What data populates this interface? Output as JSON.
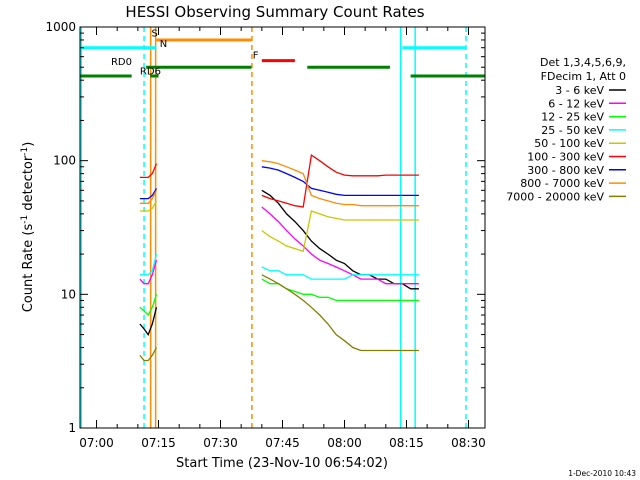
{
  "chart_data": {
    "type": "line",
    "title": "HESSI Observing Summary Count Rates",
    "xlabel": "Start Time (23-Nov-10 06:54:02)",
    "ylabel_base": "Count Rate (s",
    "ylabel_sup1": "-1",
    "ylabel_mid": " detector",
    "ylabel_sup2": "-1",
    "ylabel_end": ")",
    "xlim_min": [
      -4,
      94
    ],
    "ylog": true,
    "ylim": [
      1,
      1000
    ],
    "x_ticks": [
      {
        "m": 0,
        "label": "07:00"
      },
      {
        "m": 15,
        "label": "07:15"
      },
      {
        "m": 30,
        "label": "07:30"
      },
      {
        "m": 45,
        "label": "07:45"
      },
      {
        "m": 60,
        "label": "08:00"
      },
      {
        "m": 75,
        "label": "08:15"
      },
      {
        "m": 90,
        "label": "08:30"
      }
    ],
    "y_ticks": [
      {
        "v": 1,
        "label": "1"
      },
      {
        "v": 10,
        "label": "10"
      },
      {
        "v": 100,
        "label": "100"
      },
      {
        "v": 1000,
        "label": "1000"
      }
    ],
    "legend_header": [
      "Det 1,3,4,5,6,9,",
      "FDecim 1, Att 0"
    ],
    "series": [
      {
        "name": "3 - 6 keV",
        "color": "#000000",
        "segments": [
          [
            [
              10.5,
              6
            ],
            [
              11.5,
              5.5
            ],
            [
              12.5,
              5
            ],
            [
              13.5,
              6
            ],
            [
              14.5,
              8
            ]
          ],
          [
            [
              40,
              60
            ],
            [
              42,
              55
            ],
            [
              44,
              48
            ],
            [
              46,
              40
            ],
            [
              48,
              35
            ],
            [
              50,
              30
            ],
            [
              52,
              25
            ],
            [
              54,
              22
            ],
            [
              56,
              20
            ],
            [
              58,
              18
            ],
            [
              60,
              17
            ],
            [
              62,
              15
            ],
            [
              64,
              14
            ],
            [
              66,
              14
            ],
            [
              68,
              13
            ],
            [
              70,
              13
            ],
            [
              72,
              12
            ],
            [
              74,
              12
            ],
            [
              76,
              11
            ],
            [
              78,
              11
            ]
          ]
        ]
      },
      {
        "name": "6 - 12 keV",
        "color": "#ff00ff",
        "segments": [
          [
            [
              10.5,
              13
            ],
            [
              11.5,
              12
            ],
            [
              12.5,
              12
            ],
            [
              13.5,
              14
            ],
            [
              14.5,
              18
            ]
          ],
          [
            [
              40,
              45
            ],
            [
              42,
              40
            ],
            [
              44,
              35
            ],
            [
              46,
              30
            ],
            [
              48,
              26
            ],
            [
              50,
              23
            ],
            [
              52,
              20
            ],
            [
              54,
              18
            ],
            [
              56,
              17
            ],
            [
              58,
              16
            ],
            [
              60,
              15
            ],
            [
              62,
              14
            ],
            [
              64,
              13
            ],
            [
              66,
              13
            ],
            [
              68,
              13
            ],
            [
              70,
              12
            ],
            [
              72,
              12
            ],
            [
              74,
              12
            ],
            [
              76,
              12
            ],
            [
              78,
              12
            ]
          ]
        ]
      },
      {
        "name": "12 - 25 keV",
        "color": "#00ff00",
        "segments": [
          [
            [
              10.5,
              8
            ],
            [
              11.5,
              7.5
            ],
            [
              12.5,
              7
            ],
            [
              13.5,
              8
            ],
            [
              14.5,
              10
            ]
          ],
          [
            [
              40,
              13
            ],
            [
              42,
              12
            ],
            [
              44,
              12
            ],
            [
              46,
              11
            ],
            [
              48,
              10.5
            ],
            [
              50,
              10
            ],
            [
              52,
              10
            ],
            [
              54,
              9.5
            ],
            [
              56,
              9.5
            ],
            [
              58,
              9
            ],
            [
              60,
              9
            ],
            [
              62,
              9
            ],
            [
              64,
              9
            ],
            [
              66,
              9
            ],
            [
              68,
              9
            ],
            [
              70,
              9
            ],
            [
              72,
              9
            ],
            [
              74,
              9
            ],
            [
              76,
              9
            ],
            [
              78,
              9
            ]
          ]
        ]
      },
      {
        "name": "25 - 50 keV",
        "color": "#00ffff",
        "segments": [
          [
            [
              10.5,
              14
            ],
            [
              11.5,
              14
            ],
            [
              12.5,
              14
            ],
            [
              13.5,
              15
            ],
            [
              14.5,
              20
            ]
          ],
          [
            [
              40,
              16
            ],
            [
              42,
              15
            ],
            [
              44,
              15
            ],
            [
              46,
              14
            ],
            [
              48,
              14
            ],
            [
              50,
              14
            ],
            [
              52,
              13
            ],
            [
              54,
              13
            ],
            [
              56,
              13
            ],
            [
              58,
              13
            ],
            [
              60,
              13
            ],
            [
              62,
              14
            ],
            [
              64,
              14
            ],
            [
              66,
              14
            ],
            [
              68,
              14
            ],
            [
              70,
              14
            ],
            [
              72,
              14
            ],
            [
              74,
              14
            ],
            [
              76,
              14
            ],
            [
              78,
              14
            ]
          ]
        ]
      },
      {
        "name": "50 - 100 keV",
        "color": "#c8c800",
        "segments": [
          [
            [
              10.5,
              42
            ],
            [
              11.5,
              42
            ],
            [
              12.5,
              42
            ],
            [
              13.5,
              44
            ],
            [
              14.5,
              50
            ]
          ],
          [
            [
              40,
              30
            ],
            [
              42,
              27
            ],
            [
              44,
              25
            ],
            [
              46,
              23
            ],
            [
              48,
              22
            ],
            [
              50,
              21
            ],
            [
              52,
              42
            ],
            [
              54,
              40
            ],
            [
              56,
              38
            ],
            [
              58,
              37
            ],
            [
              60,
              36
            ],
            [
              62,
              36
            ],
            [
              64,
              36
            ],
            [
              66,
              36
            ],
            [
              68,
              36
            ],
            [
              70,
              36
            ],
            [
              72,
              36
            ],
            [
              74,
              36
            ],
            [
              76,
              36
            ],
            [
              78,
              36
            ]
          ]
        ]
      },
      {
        "name": "100 - 300 keV",
        "color": "#ff0000",
        "segments": [
          [
            [
              10.5,
              75
            ],
            [
              11.5,
              75
            ],
            [
              12.5,
              75
            ],
            [
              13.5,
              80
            ],
            [
              14.5,
              95
            ]
          ],
          [
            [
              40,
              55
            ],
            [
              42,
              52
            ],
            [
              44,
              50
            ],
            [
              46,
              48
            ],
            [
              48,
              46
            ],
            [
              50,
              45
            ],
            [
              52,
              110
            ],
            [
              54,
              100
            ],
            [
              56,
              90
            ],
            [
              58,
              82
            ],
            [
              60,
              78
            ],
            [
              62,
              77
            ],
            [
              64,
              77
            ],
            [
              66,
              77
            ],
            [
              68,
              77
            ],
            [
              70,
              78
            ],
            [
              72,
              78
            ],
            [
              74,
              78
            ],
            [
              76,
              78
            ],
            [
              78,
              78
            ]
          ]
        ]
      },
      {
        "name": "300 - 800 keV",
        "color": "#0000ff",
        "segments": [
          [
            [
              10.5,
              52
            ],
            [
              11.5,
              52
            ],
            [
              12.5,
              52
            ],
            [
              13.5,
              55
            ],
            [
              14.5,
              62
            ]
          ],
          [
            [
              40,
              90
            ],
            [
              42,
              88
            ],
            [
              44,
              85
            ],
            [
              46,
              80
            ],
            [
              48,
              75
            ],
            [
              50,
              70
            ],
            [
              52,
              62
            ],
            [
              54,
              60
            ],
            [
              56,
              58
            ],
            [
              58,
              56
            ],
            [
              60,
              55
            ],
            [
              62,
              55
            ],
            [
              64,
              55
            ],
            [
              66,
              55
            ],
            [
              68,
              55
            ],
            [
              70,
              55
            ],
            [
              72,
              55
            ],
            [
              74,
              55
            ],
            [
              76,
              55
            ],
            [
              78,
              55
            ]
          ]
        ]
      },
      {
        "name": "800 - 7000 keV",
        "color": "#ff8c00",
        "segments": [
          [
            [
              10.5,
              48
            ],
            [
              11.5,
              48
            ],
            [
              12.5,
              48
            ],
            [
              13.5,
              52
            ],
            [
              14.5,
              60
            ]
          ],
          [
            [
              40,
              100
            ],
            [
              42,
              98
            ],
            [
              44,
              95
            ],
            [
              46,
              90
            ],
            [
              48,
              85
            ],
            [
              50,
              80
            ],
            [
              52,
              55
            ],
            [
              54,
              52
            ],
            [
              56,
              50
            ],
            [
              58,
              48
            ],
            [
              60,
              47
            ],
            [
              62,
              47
            ],
            [
              64,
              46
            ],
            [
              66,
              46
            ],
            [
              68,
              46
            ],
            [
              70,
              46
            ],
            [
              72,
              46
            ],
            [
              74,
              46
            ],
            [
              76,
              46
            ],
            [
              78,
              46
            ]
          ]
        ]
      },
      {
        "name": "7000 - 20000 keV",
        "color": "#808000",
        "segments": [
          [
            [
              10.5,
              3.5
            ],
            [
              11.5,
              3.2
            ],
            [
              12.5,
              3.2
            ],
            [
              13.5,
              3.5
            ],
            [
              14.5,
              4
            ]
          ],
          [
            [
              40,
              14
            ],
            [
              42,
              13
            ],
            [
              44,
              12
            ],
            [
              46,
              11
            ],
            [
              48,
              10
            ],
            [
              50,
              9
            ],
            [
              52,
              8
            ],
            [
              54,
              7
            ],
            [
              56,
              6
            ],
            [
              58,
              5
            ],
            [
              60,
              4.5
            ],
            [
              62,
              4
            ],
            [
              64,
              3.8
            ],
            [
              66,
              3.8
            ],
            [
              68,
              3.8
            ],
            [
              70,
              3.8
            ],
            [
              72,
              3.8
            ],
            [
              74,
              3.8
            ],
            [
              76,
              3.8
            ],
            [
              78,
              3.8
            ]
          ]
        ]
      }
    ],
    "state_bars": [
      {
        "color": "#00ffff",
        "y": 700,
        "x": [
          [
            -4,
            14.5
          ],
          [
            74,
            89.5
          ]
        ]
      },
      {
        "color": "#ff8c00",
        "y": 800,
        "x": [
          [
            14.5,
            37.5
          ]
        ]
      },
      {
        "color": "#ff0000",
        "y": 560,
        "x": [
          [
            40,
            48
          ]
        ]
      },
      {
        "color": "#008000",
        "y": 500,
        "x": [
          [
            12,
            37.5
          ],
          [
            51,
            71
          ]
        ]
      },
      {
        "color": "#008000",
        "y": 430,
        "x": [
          [
            -4,
            8.5
          ],
          [
            13,
            15
          ],
          [
            76,
            94
          ]
        ]
      }
    ],
    "state_labels": [
      {
        "text": "S",
        "color": "#ff8c00",
        "m": 13.3,
        "y": 850
      },
      {
        "text": "N",
        "color": "#00ffff",
        "m": 15.3,
        "y": 710
      },
      {
        "text": "F",
        "color": "#ff0000",
        "m": 37.8,
        "y": 580
      },
      {
        "text": "RD0",
        "color": "#008000",
        "m": 3.5,
        "y": 520
      },
      {
        "text": "RD6",
        "color": "#008000",
        "m": 10.5,
        "y": 440
      }
    ],
    "vlines": [
      {
        "m": -3.7,
        "color": "#00ffff",
        "dashed": false
      },
      {
        "m": 11.5,
        "color": "#00ffff",
        "dashed": true
      },
      {
        "m": 13.1,
        "color": "#ff8c00",
        "dashed": false
      },
      {
        "m": 14.3,
        "color": "#ff8c00",
        "dashed": false
      },
      {
        "m": 37.6,
        "color": "#ff8c00",
        "dashed": true
      },
      {
        "m": 73.6,
        "color": "#00ffff",
        "dashed": false
      },
      {
        "m": 77.1,
        "color": "#00ffff",
        "dashed": false
      },
      {
        "m": 89.4,
        "color": "#00ffff",
        "dashed": true
      }
    ],
    "datestamp": "1-Dec-2010 10:43"
  }
}
